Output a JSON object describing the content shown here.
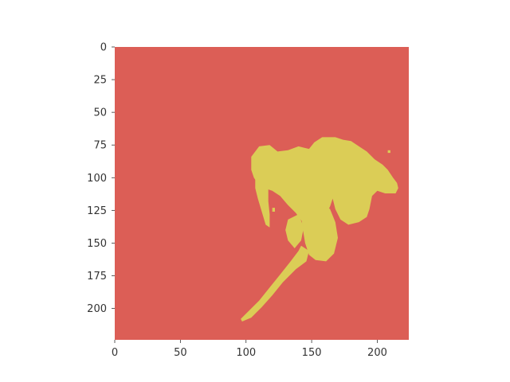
{
  "chart_data": {
    "type": "heatmap",
    "title": "",
    "xlabel": "",
    "ylabel": "",
    "image_size": [
      224,
      224
    ],
    "xlim": [
      0,
      224
    ],
    "ylim": [
      224,
      0
    ],
    "x_ticks": [
      0,
      50,
      100,
      150,
      200
    ],
    "y_ticks": [
      0,
      25,
      50,
      75,
      100,
      125,
      150,
      175,
      200
    ],
    "grid": false,
    "colors": {
      "background_class": "#dc5e56",
      "foreground_class": "#dbcd56"
    },
    "mask_regions": [
      {
        "name": "upper-body",
        "polygon": [
          [
            104,
            84
          ],
          [
            110,
            76
          ],
          [
            118,
            75
          ],
          [
            124,
            80
          ],
          [
            132,
            79
          ],
          [
            140,
            76
          ],
          [
            148,
            78
          ],
          [
            152,
            73
          ],
          [
            158,
            69
          ],
          [
            168,
            69
          ],
          [
            174,
            71
          ],
          [
            180,
            72
          ],
          [
            186,
            76
          ],
          [
            192,
            80
          ],
          [
            198,
            86
          ],
          [
            204,
            90
          ],
          [
            208,
            94
          ],
          [
            212,
            100
          ],
          [
            215,
            104
          ],
          [
            216,
            108
          ],
          [
            214,
            112
          ],
          [
            206,
            112
          ],
          [
            200,
            110
          ],
          [
            196,
            114
          ],
          [
            194,
            124
          ],
          [
            192,
            130
          ],
          [
            186,
            134
          ],
          [
            178,
            136
          ],
          [
            172,
            132
          ],
          [
            168,
            124
          ],
          [
            166,
            116
          ],
          [
            164,
            122
          ],
          [
            162,
            126
          ],
          [
            160,
            132
          ],
          [
            155,
            140
          ],
          [
            148,
            141
          ],
          [
            143,
            134
          ],
          [
            138,
            127
          ],
          [
            132,
            121
          ],
          [
            126,
            114
          ],
          [
            120,
            110
          ],
          [
            114,
            108
          ],
          [
            110,
            106
          ],
          [
            106,
            100
          ],
          [
            104,
            94
          ]
        ]
      },
      {
        "name": "left-limb",
        "polygon": [
          [
            107,
            100
          ],
          [
            113,
            104
          ],
          [
            117,
            108
          ],
          [
            117,
            118
          ],
          [
            118,
            128
          ],
          [
            118,
            138
          ],
          [
            115,
            136
          ],
          [
            112,
            126
          ],
          [
            109,
            116
          ],
          [
            107,
            108
          ]
        ]
      },
      {
        "name": "lower-body",
        "polygon": [
          [
            145,
            118
          ],
          [
            156,
            118
          ],
          [
            164,
            124
          ],
          [
            168,
            134
          ],
          [
            170,
            146
          ],
          [
            167,
            158
          ],
          [
            161,
            164
          ],
          [
            153,
            163
          ],
          [
            148,
            159
          ],
          [
            145,
            150
          ],
          [
            143,
            138
          ],
          [
            142,
            128
          ]
        ]
      },
      {
        "name": "middle-limb",
        "polygon": [
          [
            132,
            132
          ],
          [
            140,
            128
          ],
          [
            144,
            138
          ],
          [
            142,
            148
          ],
          [
            137,
            154
          ],
          [
            132,
            148
          ],
          [
            130,
            140
          ]
        ]
      },
      {
        "name": "tail",
        "polygon": [
          [
            142,
            152
          ],
          [
            148,
            156
          ],
          [
            146,
            164
          ],
          [
            138,
            170
          ],
          [
            128,
            180
          ],
          [
            120,
            190
          ],
          [
            112,
            199
          ],
          [
            104,
            207
          ],
          [
            97,
            210
          ],
          [
            96,
            208
          ],
          [
            102,
            202
          ],
          [
            110,
            194
          ],
          [
            118,
            184
          ],
          [
            126,
            174
          ],
          [
            134,
            164
          ],
          [
            140,
            156
          ]
        ]
      },
      {
        "name": "left-speck",
        "polygon": [
          [
            120,
            123
          ],
          [
            122,
            123
          ],
          [
            122,
            126
          ],
          [
            120,
            126
          ]
        ]
      },
      {
        "name": "right-speck",
        "polygon": [
          [
            208,
            79
          ],
          [
            210,
            79
          ],
          [
            210,
            81
          ],
          [
            208,
            81
          ]
        ]
      }
    ]
  }
}
